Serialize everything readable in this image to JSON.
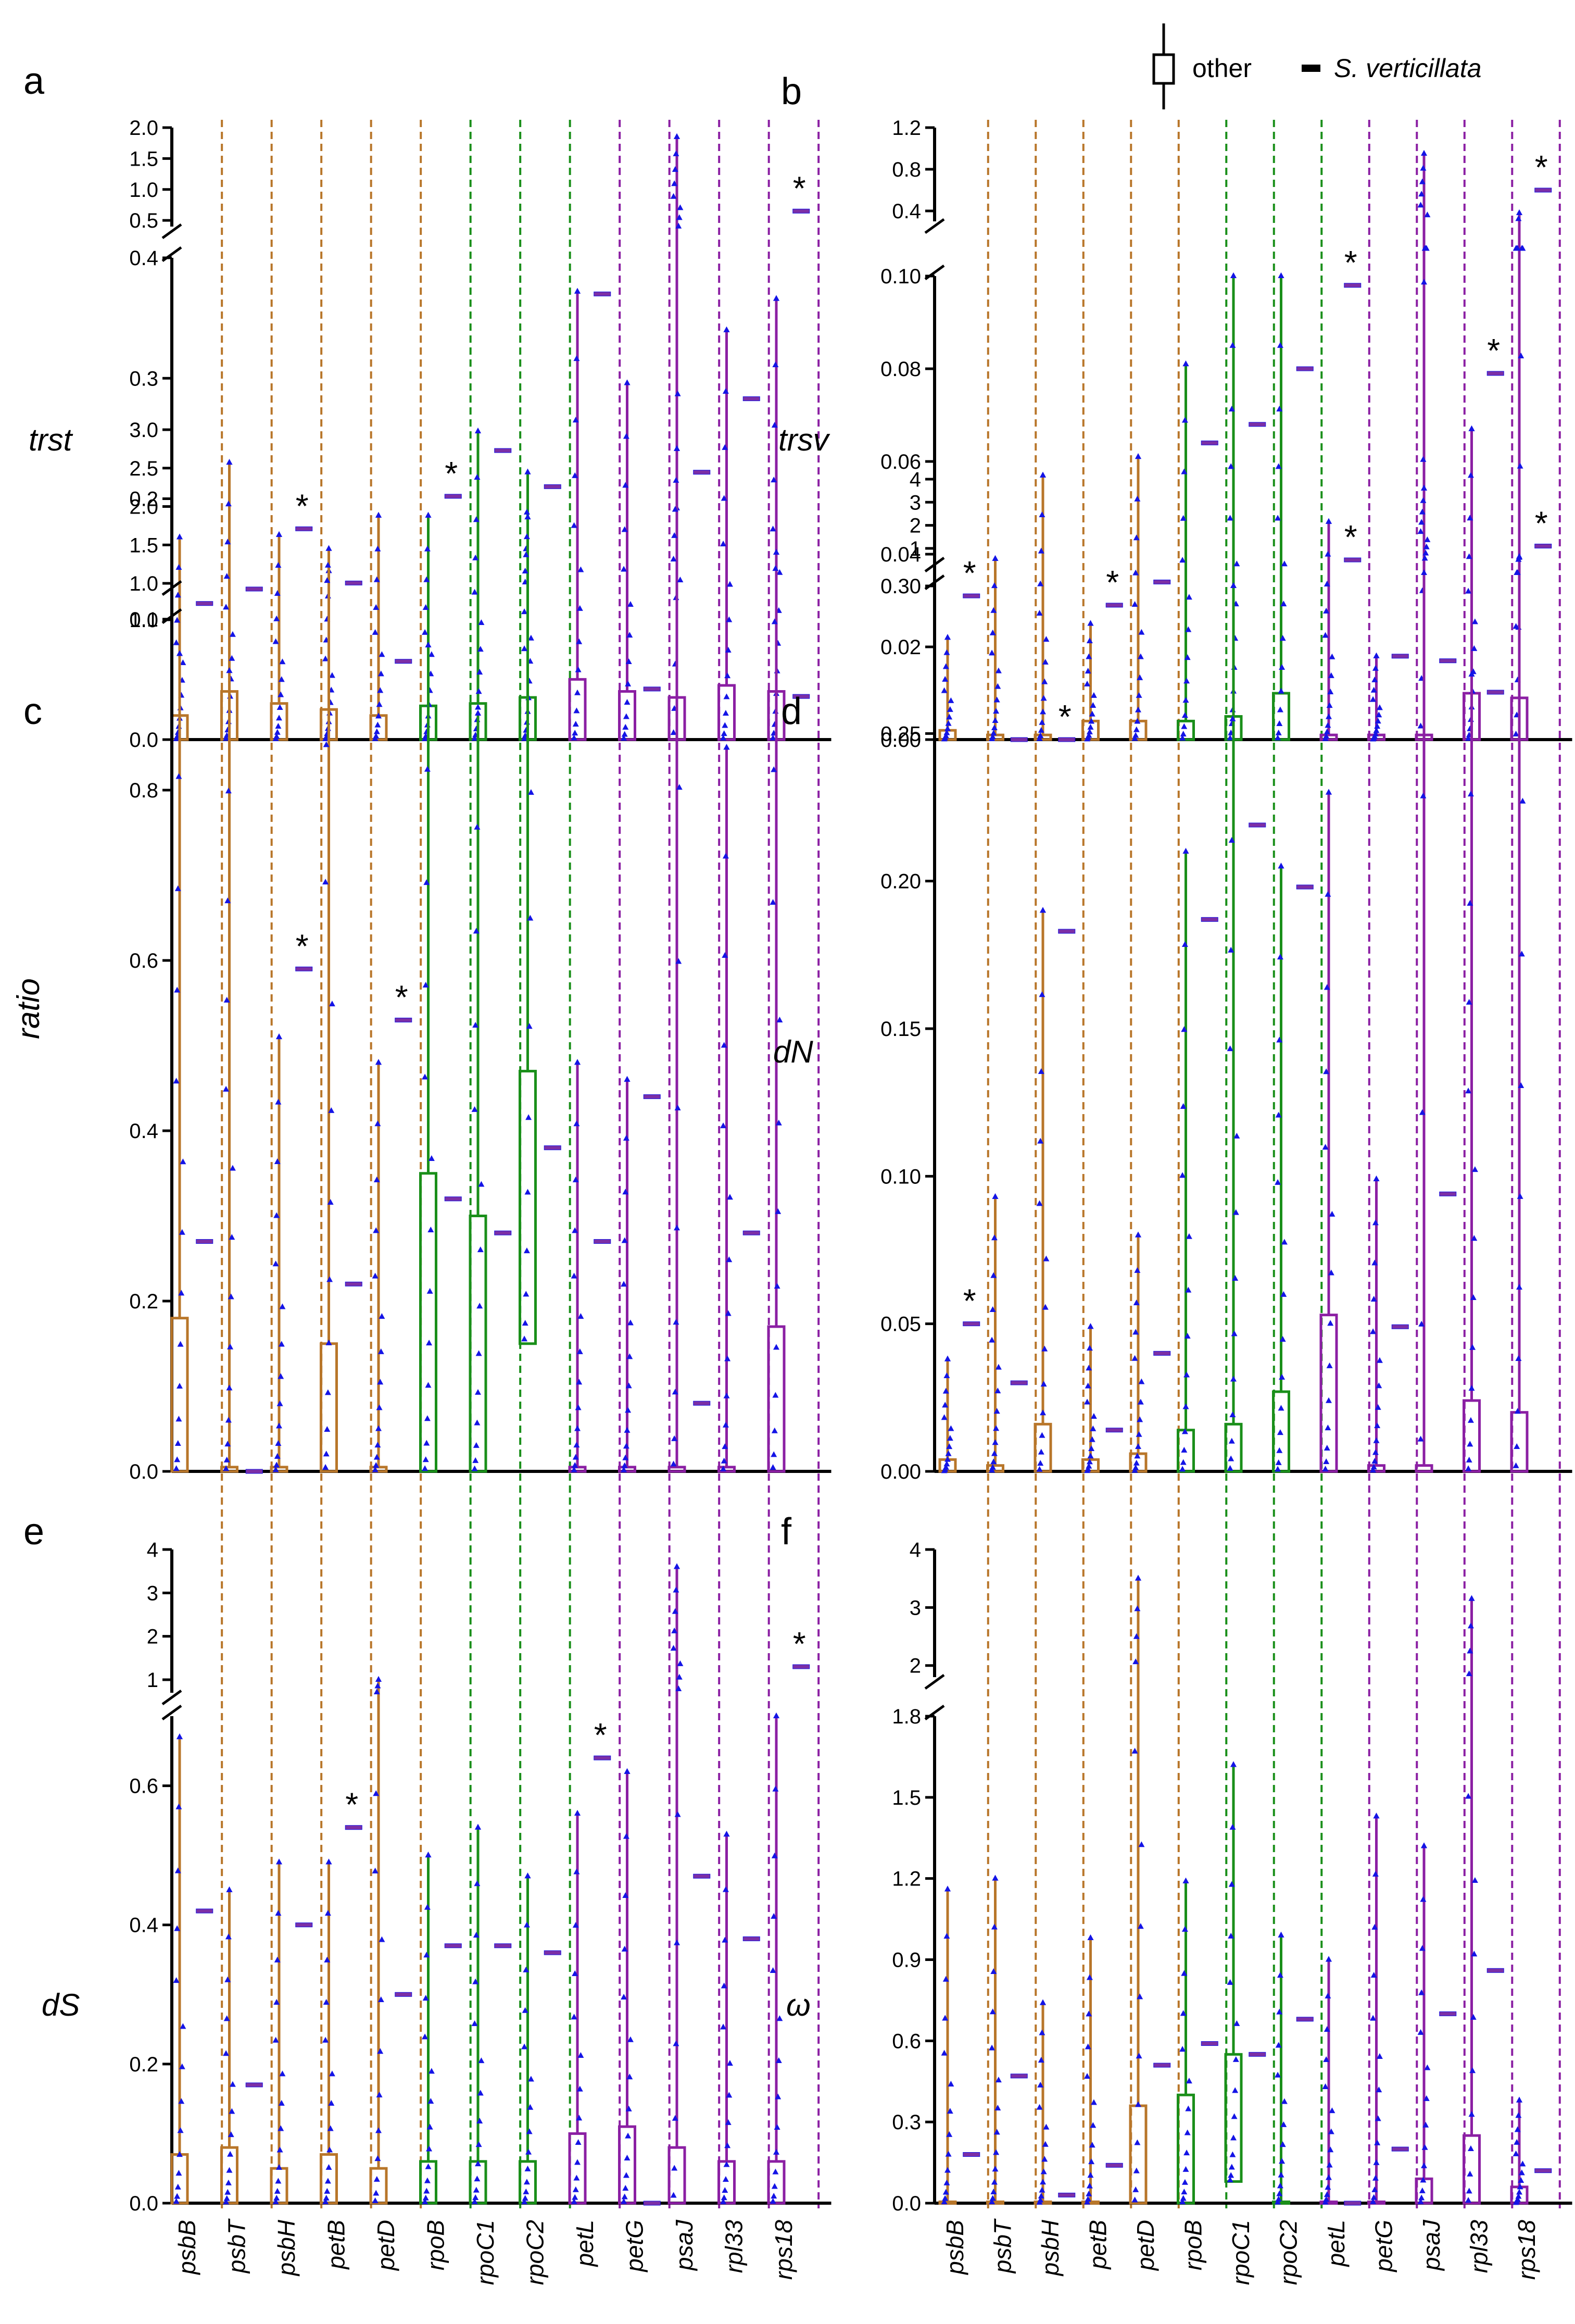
{
  "figure": {
    "legend": {
      "other_label": "other",
      "sv_label": "S. verticillata"
    }
  },
  "colors": {
    "group1": "#b8762a",
    "group2": "#1a8f1a",
    "group3": "#8b1fa3",
    "points": "#1414e6",
    "sv_bar": "#7b2fa6",
    "axis": "#000000"
  },
  "chart_data": {
    "type": "box-scatter",
    "genes": [
      "psbB",
      "psbT",
      "psbH",
      "petB",
      "petD",
      "rpoB",
      "rpoC1",
      "rpoC2",
      "petL",
      "petG",
      "psaJ",
      "rpl33",
      "rps18"
    ],
    "gene_groups": [
      1,
      1,
      1,
      1,
      1,
      2,
      2,
      2,
      3,
      3,
      3,
      3,
      3
    ],
    "panels": [
      {
        "letter": "a",
        "ylabel": "trst",
        "upper": {
          "ticks": [
            0.5,
            1.0,
            1.5,
            2.0
          ],
          "tick_labels": [
            "0.5",
            "1.0",
            "1.5",
            "2.0"
          ],
          "range": [
            0.4,
            2.0
          ]
        },
        "lower": {
          "ticks": [
            0,
            0.1,
            0.2,
            0.3,
            0.4
          ],
          "tick_labels": [
            "0.0",
            "0.1",
            "0.2",
            "0.3",
            "0.4"
          ],
          "range": [
            0,
            0.4
          ]
        },
        "other_box": [
          [
            0,
            0.02
          ],
          [
            0,
            0.04
          ],
          [
            0,
            0.03
          ],
          [
            0,
            0.025
          ],
          [
            0,
            0.02
          ],
          [
            0,
            0.028
          ],
          [
            0,
            0.03
          ],
          [
            0,
            0.035
          ],
          [
            0,
            0.05
          ],
          [
            0,
            0.04
          ],
          [
            0,
            0.035
          ],
          [
            0,
            0.045
          ],
          [
            0,
            0.04
          ]
        ],
        "other_max": [
          0.168,
          0.23,
          0.17,
          0.14,
          0.186,
          0.186,
          0.256,
          0.222,
          0.372,
          0.296,
          1.85,
          0.34,
          0.366
        ],
        "sv_value": [
          0.113,
          0.125,
          0.175,
          0.13,
          0.065,
          0.202,
          0.24,
          0.21,
          0.37,
          0.042,
          0.222,
          0.283,
          0.65
        ],
        "significant": [
          false,
          false,
          true,
          false,
          false,
          true,
          false,
          false,
          false,
          false,
          false,
          false,
          true
        ]
      },
      {
        "letter": "b",
        "ylabel": "trsv",
        "upper": {
          "ticks": [
            0.4,
            0.8,
            1.2
          ],
          "tick_labels": [
            "0.4",
            "0.8",
            "1.2"
          ],
          "range": [
            0.3,
            1.2
          ]
        },
        "lower": {
          "ticks": [
            0,
            0.02,
            0.04,
            0.06,
            0.08,
            0.1
          ],
          "tick_labels": [
            "0.00",
            "0.02",
            "0.04",
            "0.06",
            "0.08",
            "0.10"
          ],
          "range": [
            0,
            0.1
          ]
        },
        "other_box": [
          [
            0,
            0.002
          ],
          [
            0,
            0.001
          ],
          [
            0,
            0.001
          ],
          [
            0,
            0.004
          ],
          [
            0,
            0.004
          ],
          [
            0,
            0.004
          ],
          [
            0,
            0.005
          ],
          [
            0,
            0.01
          ],
          [
            0,
            0.001
          ],
          [
            0,
            0.001
          ],
          [
            0,
            0.001
          ],
          [
            0,
            0.01
          ],
          [
            0,
            0.009
          ]
        ],
        "other_max": [
          0.022,
          0.039,
          0.057,
          0.025,
          0.061,
          0.081,
          0.1,
          0.1,
          0.047,
          0.018,
          0.95,
          0.067,
          0.38
        ],
        "sv_value": [
          0.031,
          0.0,
          0.0,
          0.029,
          0.034,
          0.064,
          0.068,
          0.08,
          0.098,
          0.018,
          0.017,
          0.079,
          0.6
        ],
        "significant": [
          true,
          false,
          true,
          true,
          false,
          false,
          false,
          false,
          true,
          false,
          false,
          true,
          true
        ]
      },
      {
        "letter": "c",
        "ylabel": "ratio",
        "upper": {
          "ticks": [
            1.0,
            1.5,
            2.0,
            2.5,
            3.0
          ],
          "tick_labels": [
            "1.0",
            "1.5",
            "2.0",
            "2.5",
            "3.0"
          ],
          "range": [
            1.0,
            3.0
          ]
        },
        "lower": {
          "ticks": [
            0,
            0.2,
            0.4,
            0.6,
            0.8,
            1.0
          ],
          "tick_labels": [
            "0.0",
            "0.2",
            "0.4",
            "0.6",
            "0.8",
            "1.0"
          ],
          "range": [
            0,
            1.0
          ]
        },
        "other_box": [
          [
            0,
            0.18
          ],
          [
            0,
            0.005
          ],
          [
            0,
            0.005
          ],
          [
            0,
            0.15
          ],
          [
            0,
            0.005
          ],
          [
            0,
            0.35
          ],
          [
            0,
            0.3
          ],
          [
            0.15,
            0.47
          ],
          [
            0,
            0.005
          ],
          [
            0,
            0.005
          ],
          [
            0,
            0.005
          ],
          [
            0,
            0.005
          ],
          [
            0,
            0.17
          ]
        ],
        "other_max": [
          0.96,
          0.94,
          0.51,
          1.45,
          0.48,
          0.97,
          0.89,
          1.86,
          0.48,
          0.46,
          2.75,
          0.85,
          1.4
        ],
        "sv_value": [
          0.27,
          0.0,
          0.59,
          0.22,
          0.53,
          0.32,
          0.28,
          0.38,
          0.27,
          0.44,
          0.08,
          0.28,
          0.91
        ],
        "significant": [
          false,
          false,
          true,
          false,
          true,
          false,
          false,
          false,
          false,
          false,
          false,
          false,
          false
        ]
      },
      {
        "letter": "d",
        "ylabel": "dN",
        "upper": {
          "ticks": [
            1,
            2,
            3,
            4
          ],
          "tick_labels": [
            "1",
            "2",
            "3",
            "4"
          ],
          "range": [
            0.5,
            4
          ]
        },
        "lower": {
          "ticks": [
            0,
            0.05,
            0.1,
            0.15,
            0.2,
            0.25,
            0.3
          ],
          "tick_labels": [
            "0.00",
            "0.05",
            "0.10",
            "0.15",
            "0.20",
            "0.25",
            "0.30"
          ],
          "range": [
            0,
            0.3
          ]
        },
        "other_box": [
          [
            0,
            0.004
          ],
          [
            0,
            0.002
          ],
          [
            0,
            0.016
          ],
          [
            0,
            0.004
          ],
          [
            0,
            0.006
          ],
          [
            0,
            0.014
          ],
          [
            0,
            0.016
          ],
          [
            0,
            0.027
          ],
          [
            0,
            0.053
          ],
          [
            0,
            0.002
          ],
          [
            0,
            0.002
          ],
          [
            0,
            0.024
          ],
          [
            0,
            0.02
          ]
        ],
        "other_max": [
          0.038,
          0.093,
          0.19,
          0.049,
          0.08,
          0.21,
          0.3,
          0.205,
          0.23,
          0.099,
          3.6,
          0.27,
          0.6
        ],
        "sv_value": [
          0.05,
          0.03,
          0.183,
          0.014,
          0.04,
          0.187,
          0.219,
          0.198,
          0.5,
          0.049,
          0.094,
          0.264,
          1.1
        ],
        "significant": [
          true,
          false,
          false,
          false,
          false,
          false,
          false,
          false,
          true,
          false,
          false,
          false,
          true
        ]
      },
      {
        "letter": "e",
        "ylabel": "dS",
        "upper": {
          "ticks": [
            1,
            2,
            3,
            4
          ],
          "tick_labels": [
            "1",
            "2",
            "3",
            "4"
          ],
          "range": [
            0.7,
            4
          ]
        },
        "lower": {
          "ticks": [
            0,
            0.2,
            0.4,
            0.6
          ],
          "tick_labels": [
            "0.0",
            "0.2",
            "0.4",
            "0.6"
          ],
          "range": [
            0,
            0.7
          ]
        },
        "other_box": [
          [
            0,
            0.07
          ],
          [
            0,
            0.08
          ],
          [
            0,
            0.05
          ],
          [
            0,
            0.07
          ],
          [
            0,
            0.05
          ],
          [
            0,
            0.06
          ],
          [
            0,
            0.06
          ],
          [
            0,
            0.06
          ],
          [
            0,
            0.1
          ],
          [
            0,
            0.11
          ],
          [
            0,
            0.08
          ],
          [
            0,
            0.06
          ],
          [
            0,
            0.06
          ]
        ],
        "other_max": [
          0.67,
          0.45,
          0.49,
          0.49,
          1.0,
          0.5,
          0.54,
          0.47,
          0.56,
          0.62,
          3.6,
          0.53,
          0.7
        ],
        "sv_value": [
          0.42,
          0.17,
          0.4,
          0.54,
          0.3,
          0.37,
          0.37,
          0.36,
          0.64,
          0.0,
          0.47,
          0.38,
          1.3
        ],
        "significant": [
          false,
          false,
          false,
          true,
          false,
          false,
          false,
          false,
          true,
          false,
          false,
          false,
          true
        ]
      },
      {
        "letter": "f",
        "ylabel": "ω",
        "upper": {
          "ticks": [
            2,
            3,
            4
          ],
          "tick_labels": [
            "2",
            "3",
            "4"
          ],
          "range": [
            1.8,
            4
          ]
        },
        "lower": {
          "ticks": [
            0,
            0.3,
            0.6,
            0.9,
            1.2,
            1.5,
            1.8
          ],
          "tick_labels": [
            "0.0",
            "0.3",
            "0.6",
            "0.9",
            "1.2",
            "1.5",
            "1.8"
          ],
          "range": [
            0,
            1.8
          ]
        },
        "other_box": [
          [
            0,
            0.005
          ],
          [
            0,
            0.005
          ],
          [
            0,
            0.005
          ],
          [
            0,
            0.005
          ],
          [
            0,
            0.36
          ],
          [
            0,
            0.4
          ],
          [
            0.08,
            0.55
          ],
          [
            0,
            0.005
          ],
          [
            0,
            0.005
          ],
          [
            0,
            0.005
          ],
          [
            0,
            0.09
          ],
          [
            0,
            0.25
          ],
          [
            0,
            0.06
          ]
        ],
        "other_max": [
          1.16,
          1.2,
          0.74,
          0.98,
          3.5,
          1.19,
          1.62,
          0.99,
          0.9,
          1.43,
          1.32,
          3.15,
          0.38
        ],
        "sv_value": [
          0.18,
          0.47,
          0.03,
          0.14,
          0.51,
          0.59,
          0.55,
          0.68,
          0.0,
          0.2,
          0.7,
          0.86,
          0.12
        ],
        "significant": [
          false,
          false,
          false,
          false,
          false,
          false,
          false,
          false,
          false,
          false,
          false,
          false,
          false
        ]
      }
    ]
  }
}
